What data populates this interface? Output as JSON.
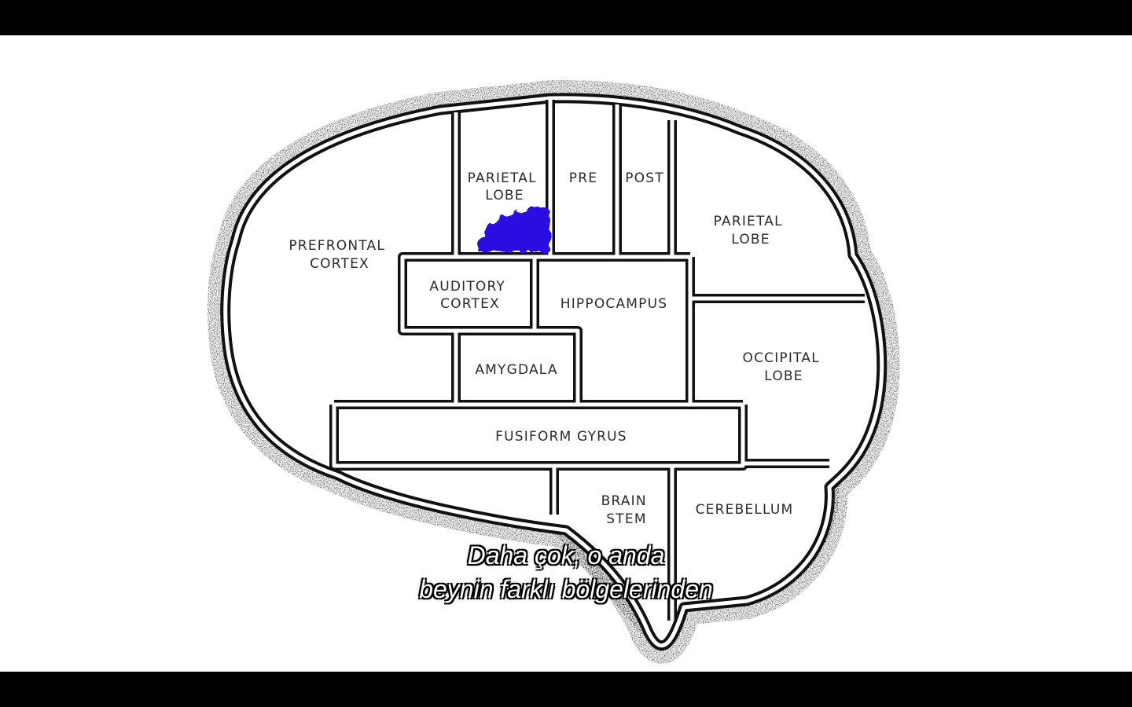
{
  "colors": {
    "letterbox": "#000000",
    "background": "#ffffff",
    "outline": "#111111",
    "stipple": "#555555",
    "highlight": "#2a10e0",
    "subtitle_text": "#ffffff"
  },
  "brain_map": {
    "regions": {
      "parietal_lobe_front": [
        "PARIETAL",
        "LOBE"
      ],
      "pre": [
        "PRE"
      ],
      "post": [
        "POST"
      ],
      "parietal_lobe_back": [
        "PARIETAL",
        "LOBE"
      ],
      "prefrontal_cortex": [
        "PREFRONTAL",
        "CORTEX"
      ],
      "auditory_cortex": [
        "AUDITORY",
        "CORTEX"
      ],
      "hippocampus": [
        "HIPPOCAMPUS"
      ],
      "occipital_lobe": [
        "OCCIPITAL",
        "LOBE"
      ],
      "amygdala": [
        "AMYGDALA"
      ],
      "fusiform_gyrus": [
        "FUSIFORM GYRUS"
      ],
      "brain_stem": [
        "BRAIN",
        "STEM"
      ],
      "cerebellum": [
        "CEREBELLUM"
      ]
    },
    "highlighted_region": "parietal_lobe_front"
  },
  "subtitles": {
    "line1": "Daha çok, o anda",
    "line2": "beynin farklı bölgelerinden"
  }
}
